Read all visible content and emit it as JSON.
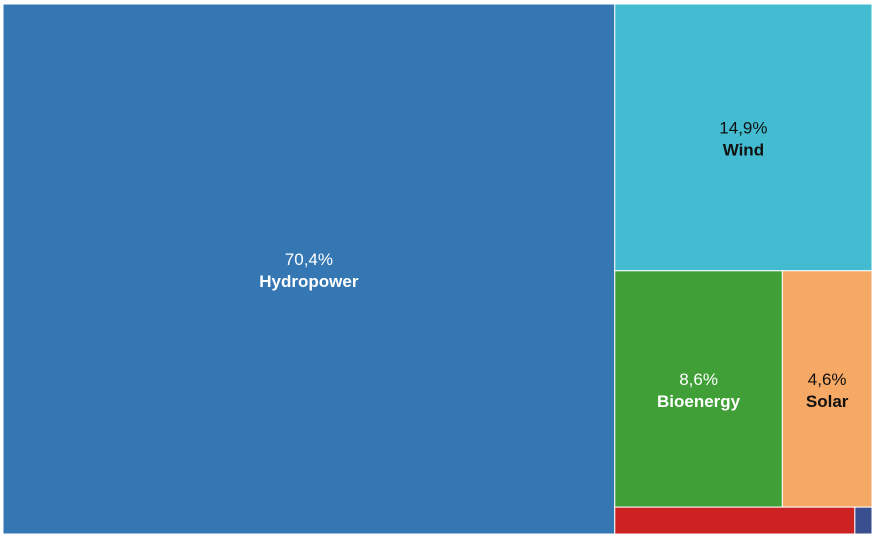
{
  "chart_data": {
    "type": "treemap",
    "title": "",
    "tiles": [
      {
        "name": "Hydropower",
        "value": 70.4,
        "value_label": "70,4%",
        "color": "#3577b3",
        "label_color": "#ffffff"
      },
      {
        "name": "Wind",
        "value": 14.9,
        "value_label": "14,9%",
        "color": "#43bcd1",
        "label_color": "#111111"
      },
      {
        "name": "Bioenergy",
        "value": 8.6,
        "value_label": "8,6%",
        "color": "#40a037",
        "label_color": "#ffffff"
      },
      {
        "name": "Solar",
        "value": 4.6,
        "value_label": "4,6%",
        "color": "#f6a865",
        "label_color": "#111111"
      },
      {
        "name": "",
        "value": 1.4,
        "value_label": "",
        "color": "#cc2222",
        "label_color": "#ffffff"
      },
      {
        "name": "",
        "value": 0.1,
        "value_label": "",
        "color": "#3a4f8f",
        "label_color": "#ffffff"
      }
    ]
  }
}
